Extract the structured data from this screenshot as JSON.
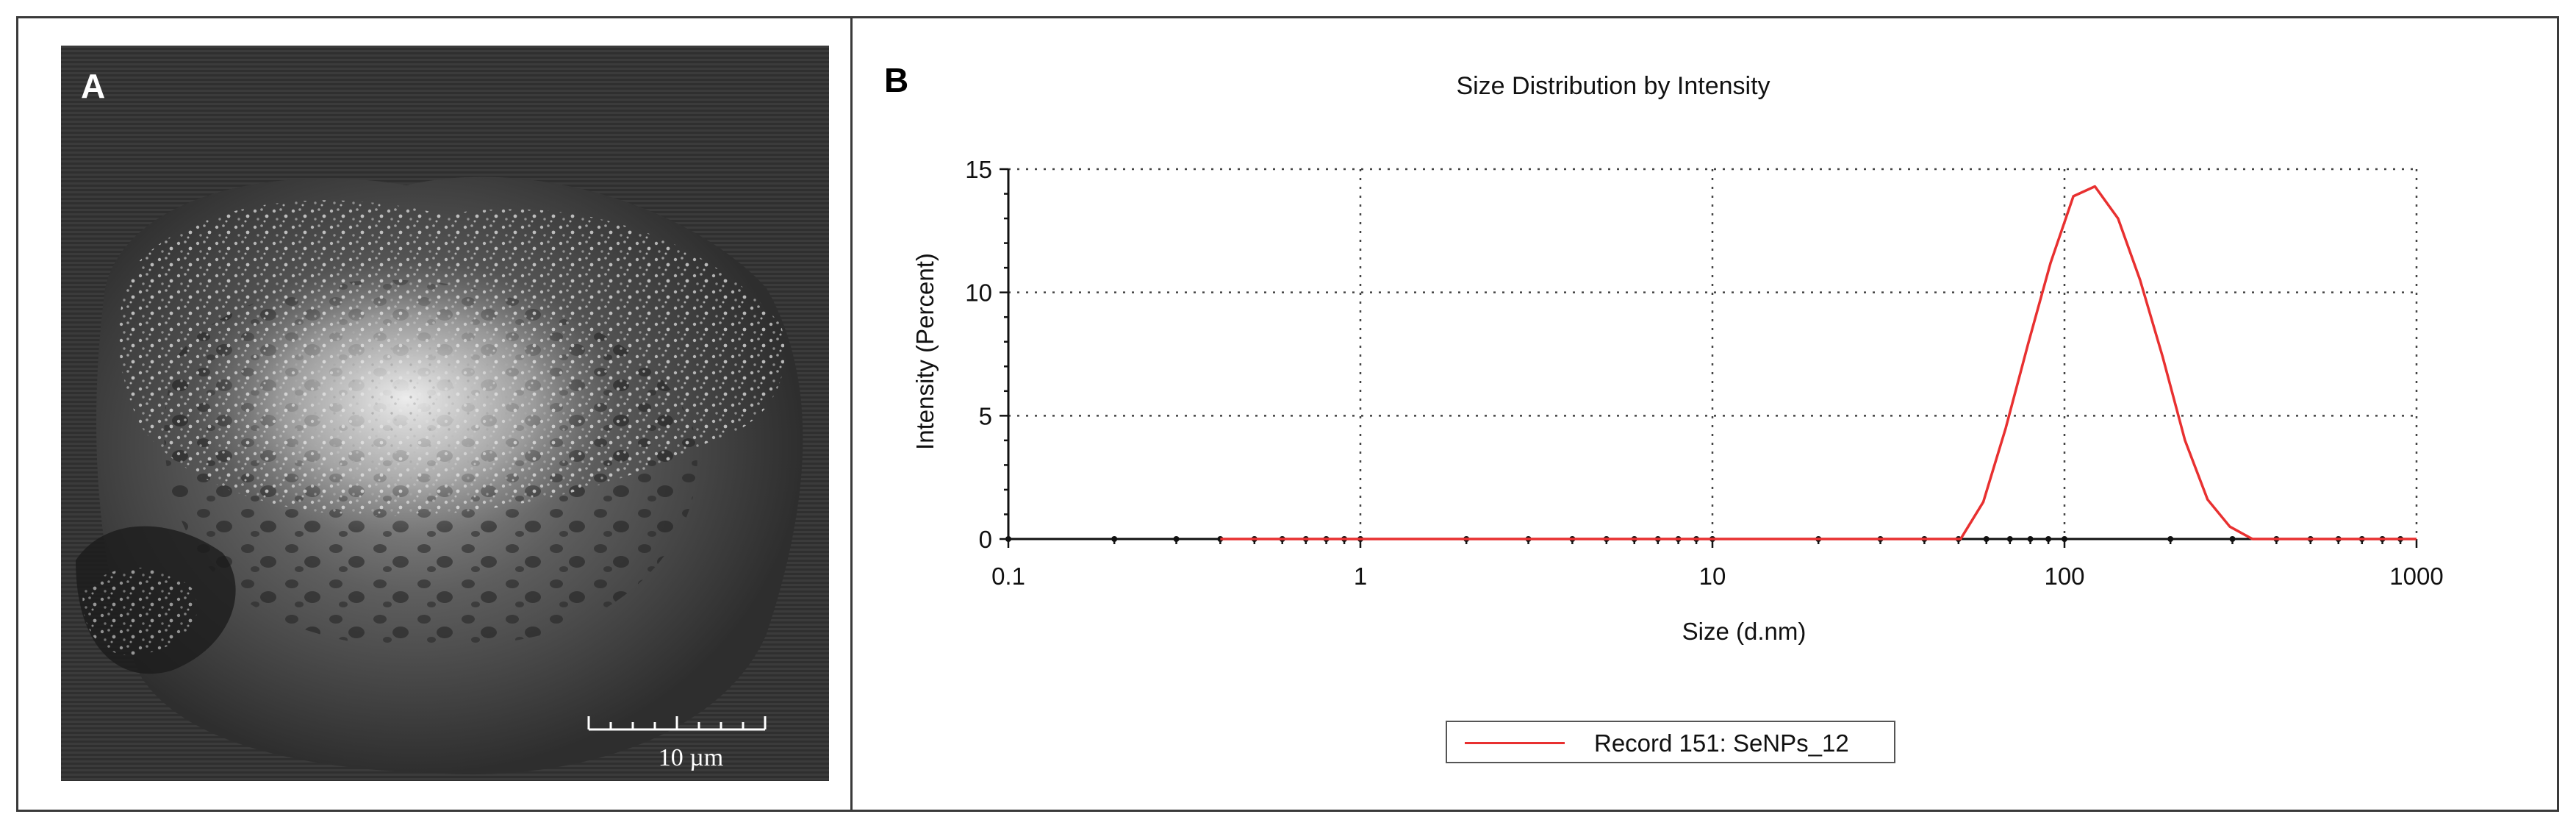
{
  "panel_a": {
    "letter": "A",
    "scale_bar_label": "10 µm"
  },
  "panel_b": {
    "letter": "B"
  },
  "chart_data": {
    "type": "line",
    "title": "Size Distribution by Intensity",
    "xlabel": "Size (d.nm)",
    "ylabel": "Intensity (Percent)",
    "xscale": "log",
    "xlim": [
      0.1,
      1000
    ],
    "ylim": [
      0,
      15
    ],
    "x_ticks": [
      0.1,
      1,
      10,
      100,
      1000
    ],
    "x_tick_labels": [
      "0.1",
      "1",
      "10",
      "100",
      "1000"
    ],
    "y_ticks": [
      0,
      5,
      10,
      15
    ],
    "y_tick_labels": [
      "0",
      "5",
      "10",
      "15"
    ],
    "grid": true,
    "legend_placement": "bottom-center",
    "series": [
      {
        "name": "Record 151: SeNPs_12",
        "color": "#e83030",
        "x": [
          0.4,
          1,
          10,
          40,
          50.7,
          58.8,
          68.1,
          78.8,
          91.3,
          106,
          122,
          142,
          164,
          190,
          220,
          255,
          295,
          342,
          400,
          1000
        ],
        "y": [
          0,
          0,
          0,
          0,
          0,
          1.5,
          4.5,
          7.9,
          11.2,
          13.9,
          14.3,
          13.0,
          10.5,
          7.4,
          4.0,
          1.6,
          0.5,
          0,
          0,
          0
        ]
      }
    ]
  }
}
